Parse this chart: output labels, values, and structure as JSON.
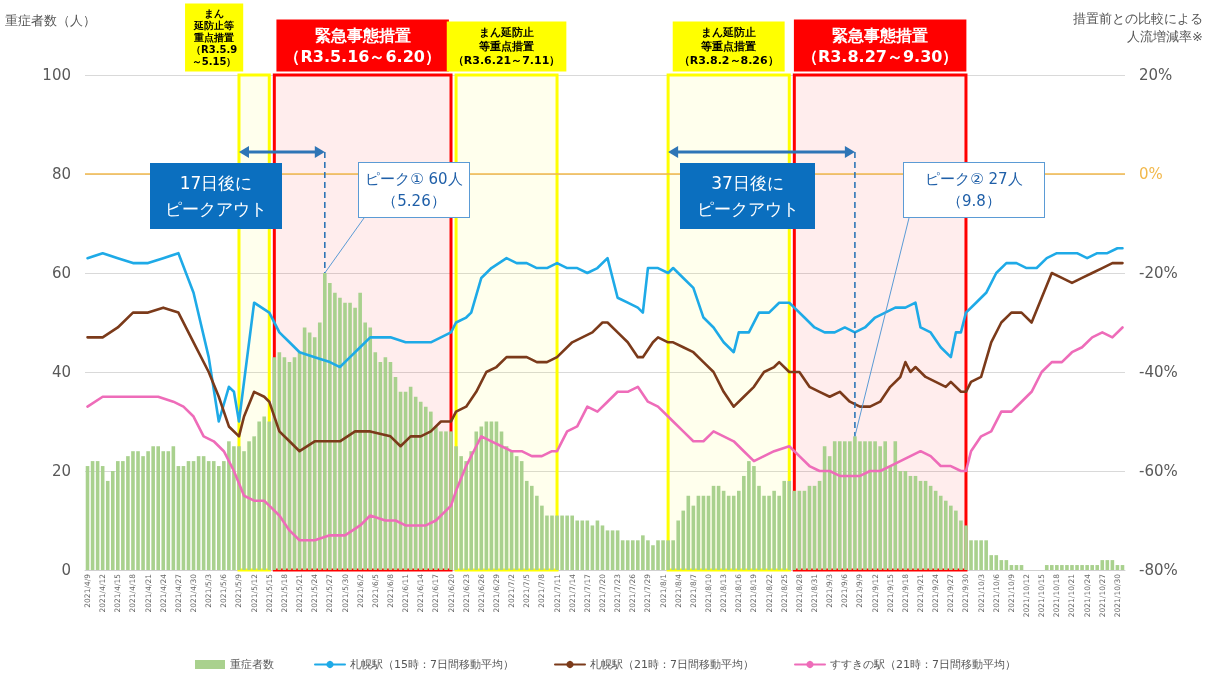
{
  "chart_data": {
    "type": "bar",
    "ylabel": "重症者数（人）",
    "y2label": "措置前との比較による人流増減率※",
    "x": [
      "2021-04-09",
      "2021-04-10",
      "2021-04-11",
      "2021-04-12",
      "2021-04-13",
      "2021-04-14",
      "2021-04-15",
      "2021-04-16",
      "2021-04-17",
      "2021-04-18",
      "2021-04-19",
      "2021-04-20",
      "2021-04-21",
      "2021-04-22",
      "2021-04-23",
      "2021-04-24",
      "2021-04-25",
      "2021-04-26",
      "2021-04-27",
      "2021-04-28",
      "2021-04-29",
      "2021-04-30",
      "2021-05-01",
      "2021-05-02",
      "2021-05-03",
      "2021-05-04",
      "2021-05-05",
      "2021-05-06",
      "2021-05-07",
      "2021-05-08",
      "2021-05-09",
      "2021-05-10",
      "2021-05-11",
      "2021-05-12",
      "2021-05-13",
      "2021-05-14",
      "2021-05-15",
      "2021-05-16",
      "2021-05-17",
      "2021-05-18",
      "2021-05-19",
      "2021-05-20",
      "2021-05-21",
      "2021-05-22",
      "2021-05-23",
      "2021-05-24",
      "2021-05-25",
      "2021-05-26",
      "2021-05-27",
      "2021-05-28",
      "2021-05-29",
      "2021-05-30",
      "2021-05-31",
      "2021-06-01",
      "2021-06-02",
      "2021-06-03",
      "2021-06-04",
      "2021-06-05",
      "2021-06-06",
      "2021-06-07",
      "2021-06-08",
      "2021-06-09",
      "2021-06-10",
      "2021-06-11",
      "2021-06-12",
      "2021-06-13",
      "2021-06-14",
      "2021-06-15",
      "2021-06-16",
      "2021-06-17",
      "2021-06-18",
      "2021-06-19",
      "2021-06-20",
      "2021-06-21",
      "2021-06-22",
      "2021-06-23",
      "2021-06-24",
      "2021-06-25",
      "2021-06-26",
      "2021-06-27",
      "2021-06-28",
      "2021-06-29",
      "2021-06-30",
      "2021-07-01",
      "2021-07-02",
      "2021-07-03",
      "2021-07-04",
      "2021-07-05",
      "2021-07-06",
      "2021-07-07",
      "2021-07-08",
      "2021-07-09",
      "2021-07-10",
      "2021-07-11",
      "2021-07-12",
      "2021-07-13",
      "2021-07-14",
      "2021-07-15",
      "2021-07-16",
      "2021-07-17",
      "2021-07-18",
      "2021-07-19",
      "2021-07-20",
      "2021-07-21",
      "2021-07-22",
      "2021-07-23",
      "2021-07-24",
      "2021-07-25",
      "2021-07-26",
      "2021-07-27",
      "2021-07-28",
      "2021-07-29",
      "2021-07-30",
      "2021-07-31",
      "2021-08-01",
      "2021-08-02",
      "2021-08-03",
      "2021-08-04",
      "2021-08-05",
      "2021-08-06",
      "2021-08-07",
      "2021-08-08",
      "2021-08-09",
      "2021-08-10",
      "2021-08-11",
      "2021-08-12",
      "2021-08-13",
      "2021-08-14",
      "2021-08-15",
      "2021-08-16",
      "2021-08-17",
      "2021-08-18",
      "2021-08-19",
      "2021-08-20",
      "2021-08-21",
      "2021-08-22",
      "2021-08-23",
      "2021-08-24",
      "2021-08-25",
      "2021-08-26",
      "2021-08-27",
      "2021-08-28",
      "2021-08-29",
      "2021-08-30",
      "2021-08-31",
      "2021-09-01",
      "2021-09-02",
      "2021-09-03",
      "2021-09-04",
      "2021-09-05",
      "2021-09-06",
      "2021-09-07",
      "2021-09-08",
      "2021-09-09",
      "2021-09-10",
      "2021-09-11",
      "2021-09-12",
      "2021-09-13",
      "2021-09-14",
      "2021-09-15",
      "2021-09-16",
      "2021-09-17",
      "2021-09-18",
      "2021-09-19",
      "2021-09-20",
      "2021-09-21",
      "2021-09-22",
      "2021-09-23",
      "2021-09-24",
      "2021-09-25",
      "2021-09-26",
      "2021-09-27",
      "2021-09-28",
      "2021-09-29",
      "2021-09-30",
      "2021-10-01",
      "2021-10-02",
      "2021-10-03",
      "2021-10-04",
      "2021-10-05",
      "2021-10-06",
      "2021-10-07",
      "2021-10-08",
      "2021-10-09",
      "2021-10-10",
      "2021-10-11",
      "2021-10-12",
      "2021-10-13",
      "2021-10-14",
      "2021-10-15",
      "2021-10-16",
      "2021-10-17",
      "2021-10-18",
      "2021-10-19",
      "2021-10-20",
      "2021-10-21",
      "2021-10-22",
      "2021-10-23",
      "2021-10-24",
      "2021-10-25",
      "2021-10-26",
      "2021-10-27",
      "2021-10-28",
      "2021-10-29",
      "2021-10-30",
      "2021-10-31"
    ],
    "series": [
      {
        "name": "重症者数",
        "color": "#a9d18e",
        "values": [
          21,
          22,
          22,
          21,
          18,
          20,
          22,
          22,
          23,
          24,
          24,
          23,
          24,
          25,
          25,
          24,
          24,
          25,
          21,
          21,
          22,
          22,
          23,
          23,
          22,
          22,
          21,
          22,
          26,
          25,
          25,
          24,
          26,
          27,
          30,
          31,
          30,
          43,
          44,
          43,
          42,
          43,
          44,
          49,
          48,
          47,
          50,
          60,
          58,
          56,
          55,
          54,
          54,
          53,
          56,
          50,
          49,
          44,
          42,
          43,
          42,
          39,
          36,
          36,
          37,
          35,
          34,
          33,
          32,
          29,
          28,
          28,
          28,
          25,
          23,
          22,
          24,
          28,
          29,
          30,
          30,
          30,
          28,
          25,
          24,
          23,
          22,
          18,
          17,
          15,
          13,
          11,
          11,
          11,
          11,
          11,
          11,
          10,
          10,
          10,
          9,
          10,
          9,
          8,
          8,
          8,
          6,
          6,
          6,
          6,
          7,
          6,
          5,
          6,
          6,
          6,
          6,
          10,
          12,
          15,
          13,
          15,
          15,
          15,
          17,
          17,
          16,
          15,
          15,
          16,
          19,
          22,
          21,
          17,
          15,
          15,
          16,
          15,
          18,
          18,
          16,
          16,
          16,
          17,
          17,
          18,
          25,
          23,
          26,
          26,
          26,
          26,
          27,
          26,
          26,
          26,
          26,
          25,
          26,
          21,
          26,
          20,
          20,
          19,
          19,
          18,
          18,
          17,
          16,
          15,
          14,
          13,
          12,
          10,
          9,
          6,
          6,
          6,
          6,
          3,
          3,
          2,
          2,
          1,
          1,
          1,
          0,
          0,
          0,
          0,
          1,
          1,
          1,
          1,
          1,
          1,
          1,
          1,
          1,
          1,
          1,
          2,
          2,
          2,
          1,
          1
        ]
      },
      {
        "name": "札幌駅（15時：7日間移動平均）",
        "type": "line",
        "axis": "y2",
        "color": "#1eaae7",
        "x": [
          "2021-04-09",
          "2021-04-12",
          "2021-04-15",
          "2021-04-18",
          "2021-04-21",
          "2021-04-24",
          "2021-04-27",
          "2021-04-30",
          "2021-05-03",
          "2021-05-05",
          "2021-05-07",
          "2021-05-08",
          "2021-05-09",
          "2021-05-12",
          "2021-05-15",
          "2021-05-17",
          "2021-05-19",
          "2021-05-21",
          "2021-05-24",
          "2021-05-27",
          "2021-05-29",
          "2021-05-31",
          "2021-06-02",
          "2021-06-04",
          "2021-06-08",
          "2021-06-11",
          "2021-06-14",
          "2021-06-16",
          "2021-06-18",
          "2021-06-20",
          "2021-06-21",
          "2021-06-23",
          "2021-06-24",
          "2021-06-26",
          "2021-06-28",
          "2021-07-01",
          "2021-07-03",
          "2021-07-05",
          "2021-07-07",
          "2021-07-09",
          "2021-07-11",
          "2021-07-13",
          "2021-07-15",
          "2021-07-17",
          "2021-07-19",
          "2021-07-21",
          "2021-07-23",
          "2021-07-25",
          "2021-07-27",
          "2021-07-28",
          "2021-07-29",
          "2021-07-31",
          "2021-08-02",
          "2021-08-03",
          "2021-08-05",
          "2021-08-07",
          "2021-08-09",
          "2021-08-11",
          "2021-08-13",
          "2021-08-14",
          "2021-08-15",
          "2021-08-16",
          "2021-08-18",
          "2021-08-20",
          "2021-08-22",
          "2021-08-24",
          "2021-08-26",
          "2021-08-27",
          "2021-08-29",
          "2021-08-31",
          "2021-09-02",
          "2021-09-04",
          "2021-09-06",
          "2021-09-08",
          "2021-09-10",
          "2021-09-12",
          "2021-09-14",
          "2021-09-16",
          "2021-09-18",
          "2021-09-20",
          "2021-09-21",
          "2021-09-23",
          "2021-09-25",
          "2021-09-27",
          "2021-09-28",
          "2021-09-29",
          "2021-09-30",
          "2021-10-02",
          "2021-10-04",
          "2021-10-06",
          "2021-10-08",
          "2021-10-10",
          "2021-10-12",
          "2021-10-14",
          "2021-10-16",
          "2021-10-18",
          "2021-10-20",
          "2021-10-22",
          "2021-10-24",
          "2021-10-26",
          "2021-10-28",
          "2021-10-30",
          "2021-10-31"
        ],
        "values": [
          -17,
          -16,
          -17,
          -18,
          -18,
          -17,
          -16,
          -24,
          -37,
          -50,
          -43,
          -44,
          -50,
          -26,
          -28,
          -32,
          -34,
          -36,
          -37,
          -38,
          -39,
          -37,
          -35,
          -33,
          -33,
          -34,
          -34,
          -34,
          -33,
          -32,
          -30,
          -29,
          -28,
          -21,
          -19,
          -17,
          -18,
          -18,
          -19,
          -19,
          -18,
          -19,
          -19,
          -20,
          -19,
          -17,
          -25,
          -26,
          -27,
          -28,
          -19,
          -19,
          -20,
          -19,
          -21,
          -23,
          -29,
          -31,
          -34,
          -35,
          -36,
          -32,
          -32,
          -28,
          -28,
          -26,
          -26,
          -27,
          -29,
          -31,
          -32,
          -32,
          -31,
          -32,
          -31,
          -29,
          -28,
          -27,
          -27,
          -26,
          -31,
          -32,
          -35,
          -37,
          -32,
          -32,
          -28,
          -26,
          -24,
          -20,
          -18,
          -18,
          -19,
          -19,
          -17,
          -16,
          -16,
          -16,
          -17,
          -16,
          -16,
          -15,
          -15
        ]
      },
      {
        "name": "札幌駅（21時：7日間移動平均）",
        "type": "line",
        "axis": "y2",
        "color": "#7b3a1a",
        "x": [
          "2021-04-09",
          "2021-04-12",
          "2021-04-15",
          "2021-04-18",
          "2021-04-21",
          "2021-04-24",
          "2021-04-27",
          "2021-04-30",
          "2021-05-03",
          "2021-05-05",
          "2021-05-07",
          "2021-05-09",
          "2021-05-10",
          "2021-05-12",
          "2021-05-14",
          "2021-05-15",
          "2021-05-17",
          "2021-05-19",
          "2021-05-21",
          "2021-05-24",
          "2021-05-27",
          "2021-05-29",
          "2021-06-01",
          "2021-06-04",
          "2021-06-08",
          "2021-06-10",
          "2021-06-12",
          "2021-06-14",
          "2021-06-16",
          "2021-06-18",
          "2021-06-20",
          "2021-06-21",
          "2021-06-23",
          "2021-06-25",
          "2021-06-27",
          "2021-06-29",
          "2021-07-01",
          "2021-07-03",
          "2021-07-05",
          "2021-07-07",
          "2021-07-09",
          "2021-07-11",
          "2021-07-14",
          "2021-07-16",
          "2021-07-18",
          "2021-07-20",
          "2021-07-21",
          "2021-07-23",
          "2021-07-25",
          "2021-07-27",
          "2021-07-28",
          "2021-07-30",
          "2021-07-31",
          "2021-08-02",
          "2021-08-03",
          "2021-08-05",
          "2021-08-07",
          "2021-08-09",
          "2021-08-11",
          "2021-08-13",
          "2021-08-15",
          "2021-08-17",
          "2021-08-19",
          "2021-08-21",
          "2021-08-23",
          "2021-08-24",
          "2021-08-26",
          "2021-08-28",
          "2021-08-30",
          "2021-09-01",
          "2021-09-03",
          "2021-09-05",
          "2021-09-07",
          "2021-09-09",
          "2021-09-11",
          "2021-09-13",
          "2021-09-15",
          "2021-09-17",
          "2021-09-18",
          "2021-09-19",
          "2021-09-20",
          "2021-09-22",
          "2021-09-24",
          "2021-09-26",
          "2021-09-27",
          "2021-09-29",
          "2021-09-30",
          "2021-10-01",
          "2021-10-03",
          "2021-10-05",
          "2021-10-07",
          "2021-10-09",
          "2021-10-11",
          "2021-10-13",
          "2021-10-15",
          "2021-10-17",
          "2021-10-19",
          "2021-10-21",
          "2021-10-23",
          "2021-10-25",
          "2021-10-27",
          "2021-10-29",
          "2021-10-31"
        ],
        "values": [
          -33,
          -33,
          -31,
          -28,
          -28,
          -27,
          -28,
          -34,
          -40,
          -45,
          -51,
          -53,
          -49,
          -44,
          -45,
          -46,
          -52,
          -54,
          -56,
          -54,
          -54,
          -54,
          -52,
          -52,
          -53,
          -55,
          -53,
          -53,
          -52,
          -50,
          -50,
          -48,
          -47,
          -44,
          -40,
          -39,
          -37,
          -37,
          -37,
          -38,
          -38,
          -37,
          -34,
          -33,
          -32,
          -30,
          -30,
          -32,
          -34,
          -37,
          -37,
          -34,
          -33,
          -34,
          -34,
          -35,
          -36,
          -38,
          -40,
          -44,
          -47,
          -45,
          -43,
          -40,
          -39,
          -38,
          -40,
          -40,
          -43,
          -44,
          -45,
          -44,
          -46,
          -47,
          -47,
          -46,
          -43,
          -41,
          -38,
          -40,
          -39,
          -41,
          -42,
          -43,
          -42,
          -44,
          -44,
          -42,
          -41,
          -34,
          -30,
          -28,
          -28,
          -30,
          -25,
          -20,
          -21,
          -22,
          -21,
          -20,
          -19,
          -18,
          -18
        ]
      },
      {
        "name": "すすきの駅（21時：7日間移動平均）",
        "type": "line",
        "axis": "y2",
        "color": "#ee6cb9",
        "x": [
          "2021-04-09",
          "2021-04-12",
          "2021-04-15",
          "2021-04-18",
          "2021-04-20",
          "2021-04-23",
          "2021-04-26",
          "2021-04-28",
          "2021-04-30",
          "2021-05-02",
          "2021-05-04",
          "2021-05-06",
          "2021-05-08",
          "2021-05-10",
          "2021-05-12",
          "2021-05-14",
          "2021-05-15",
          "2021-05-17",
          "2021-05-19",
          "2021-05-21",
          "2021-05-24",
          "2021-05-27",
          "2021-05-30",
          "2021-06-02",
          "2021-06-04",
          "2021-06-07",
          "2021-06-09",
          "2021-06-11",
          "2021-06-13",
          "2021-06-15",
          "2021-06-17",
          "2021-06-19",
          "2021-06-20",
          "2021-06-21",
          "2021-06-23",
          "2021-06-25",
          "2021-06-26",
          "2021-06-28",
          "2021-06-30",
          "2021-07-02",
          "2021-07-04",
          "2021-07-06",
          "2021-07-08",
          "2021-07-10",
          "2021-07-11",
          "2021-07-13",
          "2021-07-15",
          "2021-07-17",
          "2021-07-19",
          "2021-07-21",
          "2021-07-23",
          "2021-07-25",
          "2021-07-27",
          "2021-07-29",
          "2021-07-31",
          "2021-08-02",
          "2021-08-03",
          "2021-08-05",
          "2021-08-07",
          "2021-08-09",
          "2021-08-11",
          "2021-08-13",
          "2021-08-15",
          "2021-08-17",
          "2021-08-19",
          "2021-08-21",
          "2021-08-23",
          "2021-08-26",
          "2021-08-28",
          "2021-08-30",
          "2021-09-01",
          "2021-09-03",
          "2021-09-05",
          "2021-09-07",
          "2021-09-09",
          "2021-09-11",
          "2021-09-13",
          "2021-09-15",
          "2021-09-17",
          "2021-09-19",
          "2021-09-21",
          "2021-09-23",
          "2021-09-25",
          "2021-09-27",
          "2021-09-29",
          "2021-09-30",
          "2021-10-01",
          "2021-10-03",
          "2021-10-05",
          "2021-10-07",
          "2021-10-09",
          "2021-10-11",
          "2021-10-13",
          "2021-10-15",
          "2021-10-17",
          "2021-10-19",
          "2021-10-21",
          "2021-10-23",
          "2021-10-25",
          "2021-10-27",
          "2021-10-29",
          "2021-10-31"
        ],
        "values": [
          -47,
          -45,
          -45,
          -45,
          -45,
          -45,
          -46,
          -47,
          -49,
          -53,
          -54,
          -56,
          -60,
          -65,
          -66,
          -66,
          -67,
          -69,
          -72,
          -74,
          -74,
          -73,
          -73,
          -71,
          -69,
          -70,
          -70,
          -71,
          -71,
          -71,
          -70,
          -68,
          -67,
          -64,
          -59,
          -55,
          -53,
          -54,
          -55,
          -56,
          -56,
          -57,
          -57,
          -56,
          -56,
          -52,
          -51,
          -47,
          -48,
          -46,
          -44,
          -44,
          -43,
          -46,
          -47,
          -49,
          -50,
          -52,
          -54,
          -54,
          -52,
          -53,
          -54,
          -56,
          -58,
          -57,
          -56,
          -55,
          -57,
          -59,
          -60,
          -60,
          -61,
          -61,
          -61,
          -60,
          -60,
          -59,
          -58,
          -57,
          -56,
          -57,
          -59,
          -59,
          -60,
          -60,
          -56,
          -53,
          -52,
          -48,
          -48,
          -46,
          -44,
          -40,
          -38,
          -38,
          -36,
          -35,
          -33,
          -32,
          -33,
          -31
        ]
      }
    ],
    "xlim": [
      "2021-04-08T12:00",
      "2021-10-31T12:00"
    ],
    "xticks": [
      {
        "value": "2021-04-09",
        "label": "2021/4/9"
      },
      {
        "value": "2021-04-12",
        "label": "2021/4/12"
      },
      {
        "value": "2021-04-15",
        "label": "2021/4/15"
      },
      {
        "value": "2021-04-18",
        "label": "2021/4/18"
      },
      {
        "value": "2021-04-21",
        "label": "2021/4/21"
      },
      {
        "value": "2021-04-24",
        "label": "2021/4/24"
      },
      {
        "value": "2021-04-27",
        "label": "2021/4/27"
      },
      {
        "value": "2021-04-30",
        "label": "2021/4/30"
      },
      {
        "value": "2021-05-03",
        "label": "2021/5/3"
      },
      {
        "value": "2021-05-06",
        "label": "2021/5/6"
      },
      {
        "value": "2021-05-09",
        "label": "2021/5/9"
      },
      {
        "value": "2021-05-12",
        "label": "2021/5/12"
      },
      {
        "value": "2021-05-15",
        "label": "2021/5/15"
      },
      {
        "value": "2021-05-18",
        "label": "2021/5/18"
      },
      {
        "value": "2021-05-21",
        "label": "2021/5/21"
      },
      {
        "value": "2021-05-24",
        "label": "2021/5/24"
      },
      {
        "value": "2021-05-27",
        "label": "2021/5/27"
      },
      {
        "value": "2021-05-30",
        "label": "2021/5/30"
      },
      {
        "value": "2021-06-02",
        "label": "2021/6/2"
      },
      {
        "value": "2021-06-05",
        "label": "2021/6/5"
      },
      {
        "value": "2021-06-08",
        "label": "2021/6/8"
      },
      {
        "value": "2021-06-11",
        "label": "2021/6/11"
      },
      {
        "value": "2021-06-14",
        "label": "2021/6/14"
      },
      {
        "value": "2021-06-17",
        "label": "2021/6/17"
      },
      {
        "value": "2021-06-20",
        "label": "2021/6/20"
      },
      {
        "value": "2021-06-23",
        "label": "2021/6/23"
      },
      {
        "value": "2021-06-26",
        "label": "2021/6/26"
      },
      {
        "value": "2021-06-29",
        "label": "2021/6/29"
      },
      {
        "value": "2021-07-02",
        "label": "2021/7/2"
      },
      {
        "value": "2021-07-05",
        "label": "2021/7/5"
      },
      {
        "value": "2021-07-08",
        "label": "2021/7/8"
      },
      {
        "value": "2021-07-11",
        "label": "2021/7/11"
      },
      {
        "value": "2021-07-14",
        "label": "2021/7/14"
      },
      {
        "value": "2021-07-17",
        "label": "2021/7/17"
      },
      {
        "value": "2021-07-20",
        "label": "2021/7/20"
      },
      {
        "value": "2021-07-23",
        "label": "2021/7/23"
      },
      {
        "value": "2021-07-26",
        "label": "2021/7/26"
      },
      {
        "value": "2021-07-29",
        "label": "2021/7/29"
      },
      {
        "value": "2021-08-01",
        "label": "2021/8/1"
      },
      {
        "value": "2021-08-04",
        "label": "2021/8/4"
      },
      {
        "value": "2021-08-07",
        "label": "2021/8/7"
      },
      {
        "value": "2021-08-10",
        "label": "2021/8/10"
      },
      {
        "value": "2021-08-13",
        "label": "2021/8/13"
      },
      {
        "value": "2021-08-16",
        "label": "2021/8/16"
      },
      {
        "value": "2021-08-19",
        "label": "2021/8/19"
      },
      {
        "value": "2021-08-22",
        "label": "2021/8/22"
      },
      {
        "value": "2021-08-25",
        "label": "2021/8/25"
      },
      {
        "value": "2021-08-28",
        "label": "2021/8/28"
      },
      {
        "value": "2021-08-31",
        "label": "2021/8/31"
      },
      {
        "value": "2021-09-03",
        "label": "2021/9/3"
      },
      {
        "value": "2021-09-06",
        "label": "2021/9/6"
      },
      {
        "value": "2021-09-09",
        "label": "2021/9/9"
      },
      {
        "value": "2021-09-12",
        "label": "2021/9/12"
      },
      {
        "value": "2021-09-15",
        "label": "2021/9/15"
      },
      {
        "value": "2021-09-18",
        "label": "2021/9/18"
      },
      {
        "value": "2021-09-21",
        "label": "2021/9/21"
      },
      {
        "value": "2021-09-24",
        "label": "2021/9/24"
      },
      {
        "value": "2021-09-27",
        "label": "2021/9/27"
      },
      {
        "value": "2021-09-30",
        "label": "2021/9/30"
      },
      {
        "value": "2021-10-03",
        "label": "2021/10/3"
      },
      {
        "value": "2021-10-06",
        "label": "2021/10/6"
      },
      {
        "value": "2021-10-09",
        "label": "2021/10/9"
      },
      {
        "value": "2021-10-12",
        "label": "2021/10/12"
      },
      {
        "value": "2021-10-15",
        "label": "2021/10/15"
      },
      {
        "value": "2021-10-18",
        "label": "2021/10/18"
      },
      {
        "value": "2021-10-21",
        "label": "2021/10/21"
      },
      {
        "value": "2021-10-24",
        "label": "2021/10/24"
      },
      {
        "value": "2021-10-27",
        "label": "2021/10/27"
      },
      {
        "value": "2021-10-30",
        "label": "2021/10/30"
      }
    ],
    "ylim": [
      0,
      100
    ],
    "yticks": [
      0,
      20,
      40,
      60,
      80,
      100
    ],
    "y2lim": [
      -80,
      20
    ],
    "y2ticks": [
      {
        "value": -80,
        "label": "-80%"
      },
      {
        "value": -60,
        "label": "-60%"
      },
      {
        "value": -40,
        "label": "-40%"
      },
      {
        "value": -20,
        "label": "-20%"
      },
      {
        "value": 0,
        "label": "0%"
      },
      {
        "value": 20,
        "label": "20%"
      }
    ],
    "grid": "y",
    "legend": "bottom",
    "marker": "none",
    "ref_lines": [
      {
        "axis": "y2",
        "value": 0,
        "color": "#f2b84b"
      }
    ],
    "bands": [
      {
        "axis": "x",
        "from": "2021-05-09",
        "to": "2021-05-15",
        "label": "まん延防止等重点措置（R3.5.9～5.15）",
        "color": "#ffff00"
      },
      {
        "axis": "x",
        "from": "2021-05-16",
        "to": "2021-06-20",
        "label": "緊急事態措置（R3.5.16～6.20）",
        "color": "#ff0000"
      },
      {
        "axis": "x",
        "from": "2021-06-21",
        "to": "2021-07-11",
        "label": "まん延防止等重点措置（R3.6.21～7.11）",
        "color": "#ffff00"
      },
      {
        "axis": "x",
        "from": "2021-08-02",
        "to": "2021-08-26",
        "label": "まん延防止等重点措置（R3.8.2～8.26）",
        "color": "#ffff00"
      },
      {
        "axis": "x",
        "from": "2021-08-27",
        "to": "2021-09-30",
        "label": "緊急事態措置（R3.8.27～9.30）",
        "color": "#ff0000"
      }
    ],
    "annotations": [
      {
        "text": "ピーク① 60人（5.26）",
        "x": "2021-05-26",
        "y": 60
      },
      {
        "text": "ピーク② 27人（9.8）",
        "x": "2021-09-08",
        "y": 27
      },
      "17日後にピークアウト",
      "37日後にピークアウト"
    ]
  }
}
